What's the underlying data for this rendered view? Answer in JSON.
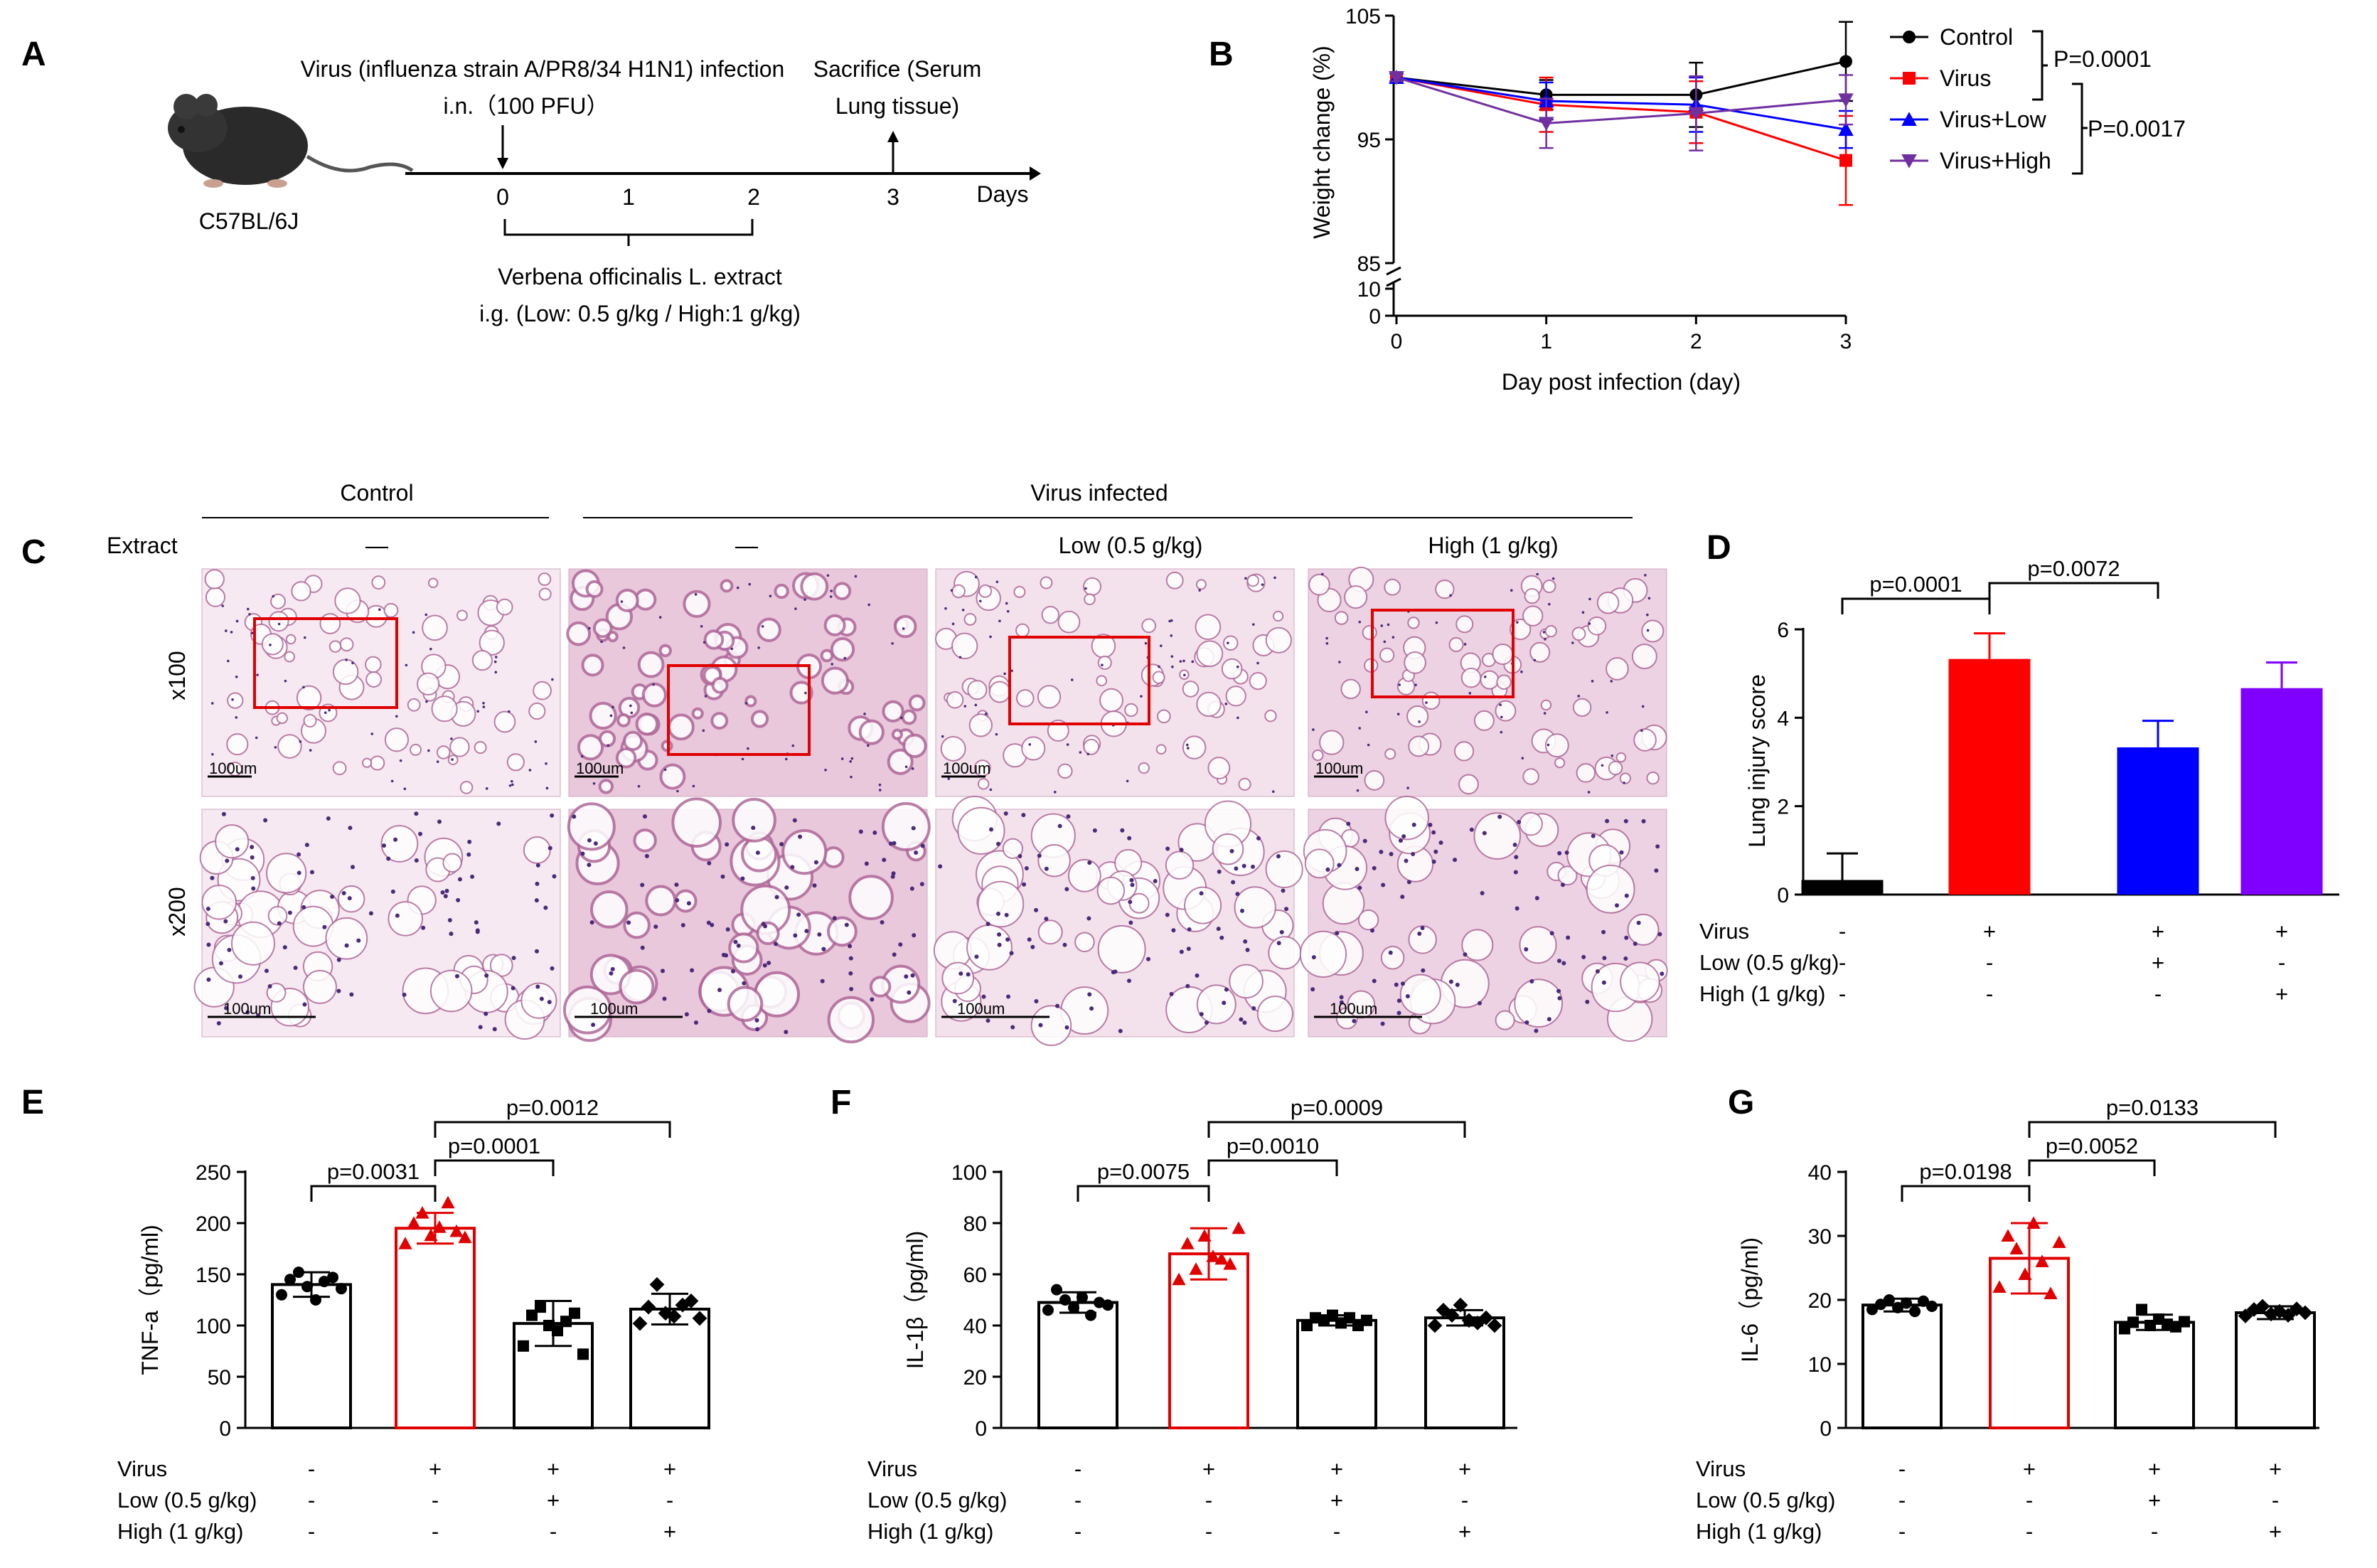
{
  "panels": {
    "A": {
      "label": "A",
      "mouse_label": "C57BL/6J",
      "infection_line1": "Virus (influenza strain A/PR8/34 H1N1) infection",
      "infection_line2": "i.n.（100 PFU）",
      "sacrifice_line1": "Sacrifice (Serum",
      "sacrifice_line2": "Lung tissue)",
      "ticks": [
        "0",
        "1",
        "2",
        "3"
      ],
      "days_label": "Days",
      "treatment_line1": "Verbena officinalis L. extract",
      "treatment_line2": "i.g. (Low: 0.5 g/kg / High:1 g/kg)"
    },
    "C": {
      "label": "C",
      "group_control": "Control",
      "group_virus": "Virus infected",
      "extract_label": "Extract",
      "columns": [
        "—",
        "—",
        "Low (0.5 g/kg)",
        "High (1 g/kg)"
      ],
      "row_labels": [
        "x100",
        "x200"
      ],
      "scalebar": "100um"
    }
  },
  "chart_data": [
    {
      "panel": "B",
      "type": "line",
      "title": "",
      "xlabel": "Day post infection (day)",
      "ylabel": "Weight change (%)",
      "x": [
        0,
        1,
        2,
        3
      ],
      "xticks": [
        "0",
        "1",
        "2",
        "3"
      ],
      "yticks_upper": [
        "85",
        "95",
        "105"
      ],
      "yticks_lower": [
        "0",
        "10"
      ],
      "ylim_upper": [
        85,
        105
      ],
      "ylim_lower": [
        0,
        10
      ],
      "series": [
        {
          "name": "Control",
          "color": "#000000",
          "marker": "circle",
          "values": [
            100,
            98.6,
            98.6,
            101.3
          ],
          "err": [
            0.3,
            1.2,
            2.6,
            3.2
          ]
        },
        {
          "name": "Virus",
          "color": "#ff0000",
          "marker": "square",
          "values": [
            100,
            97.8,
            97.2,
            93.3
          ],
          "err": [
            0.3,
            2.2,
            2.5,
            3.6
          ]
        },
        {
          "name": "Virus+Low",
          "color": "#0000ff",
          "marker": "triangle-up",
          "values": [
            100,
            98.1,
            97.8,
            95.8
          ],
          "err": [
            0.3,
            1.5,
            2.2,
            1.5
          ]
        },
        {
          "name": "Virus+High",
          "color": "#7030a0",
          "marker": "triangle-down",
          "values": [
            100,
            96.3,
            97.1,
            98.2
          ],
          "err": [
            0.3,
            2.0,
            3.0,
            2.0
          ]
        }
      ],
      "annotations": [
        "P=0.0001",
        "P=0.0017"
      ]
    },
    {
      "panel": "D",
      "type": "bar",
      "ylabel": "Lung injury score",
      "ylim": [
        0,
        6
      ],
      "yticks": [
        "0",
        "2",
        "4",
        "6"
      ],
      "categories": [
        "Control",
        "Virus",
        "Virus+Low",
        "Virus+High"
      ],
      "values": [
        0.33,
        5.33,
        3.33,
        4.67
      ],
      "err": [
        0.6,
        0.58,
        0.6,
        0.58
      ],
      "colors": [
        "#000000",
        "#ff0000",
        "#0000ff",
        "#8000ff"
      ],
      "annotations": [
        "p=0.0001",
        "p=0.0072"
      ],
      "condition_rows": [
        {
          "label": "Virus",
          "values": [
            "-",
            "+",
            "+",
            "+"
          ]
        },
        {
          "label": "Low (0.5 g/kg)",
          "values": [
            "-",
            "-",
            "+",
            "-"
          ]
        },
        {
          "label": "High (1 g/kg)",
          "values": [
            "-",
            "-",
            "-",
            "+"
          ]
        }
      ]
    },
    {
      "panel": "E",
      "type": "bar",
      "ylabel": "TNF-a（pg/ml)",
      "ylim": [
        0,
        250
      ],
      "yticks": [
        "0",
        "50",
        "100",
        "150",
        "200",
        "250"
      ],
      "categories": [
        "Control",
        "Virus",
        "Virus+Low",
        "Virus+High"
      ],
      "values": [
        140,
        195,
        102,
        116
      ],
      "err": [
        12,
        15,
        22,
        15
      ],
      "points": [
        [
          130,
          145,
          152,
          138,
          125,
          143,
          147,
          136
        ],
        [
          180,
          200,
          210,
          188,
          196,
          220,
          192,
          186
        ],
        [
          80,
          110,
          118,
          100,
          95,
          104,
          112,
          72
        ],
        [
          102,
          118,
          140,
          112,
          109,
          120,
          124,
          107
        ]
      ],
      "annotations": [
        "p=0.0031",
        "p=0.0001",
        "p=0.0012"
      ],
      "condition_rows": [
        {
          "label": "Virus",
          "values": [
            "-",
            "+",
            "+",
            "+"
          ]
        },
        {
          "label": "Low (0.5 g/kg)",
          "values": [
            "-",
            "-",
            "+",
            "-"
          ]
        },
        {
          "label": "High (1 g/kg)",
          "values": [
            "-",
            "-",
            "-",
            "+"
          ]
        }
      ]
    },
    {
      "panel": "F",
      "type": "bar",
      "ylabel": "IL-1β（pg/ml)",
      "ylim": [
        0,
        100
      ],
      "yticks": [
        "0",
        "20",
        "40",
        "60",
        "80",
        "100"
      ],
      "categories": [
        "Control",
        "Virus",
        "Virus+Low",
        "Virus+High"
      ],
      "values": [
        49,
        68,
        42,
        43
      ],
      "err": [
        4,
        10,
        2,
        3
      ],
      "points": [
        [
          46,
          54,
          50,
          47,
          51,
          44,
          49,
          48
        ],
        [
          58,
          72,
          62,
          75,
          67,
          66,
          64,
          78
        ],
        [
          40,
          43,
          42,
          44,
          41,
          43,
          40,
          42
        ],
        [
          40,
          46,
          44,
          48,
          42,
          41,
          43,
          40
        ]
      ],
      "annotations": [
        "p=0.0075",
        "p=0.0010",
        "p=0.0009"
      ],
      "condition_rows": [
        {
          "label": "Virus",
          "values": [
            "-",
            "+",
            "+",
            "+"
          ]
        },
        {
          "label": "Low (0.5 g/kg)",
          "values": [
            "-",
            "-",
            "+",
            "-"
          ]
        },
        {
          "label": "High (1 g/kg)",
          "values": [
            "-",
            "-",
            "-",
            "+"
          ]
        }
      ]
    },
    {
      "panel": "G",
      "type": "bar",
      "ylabel": "IL-6（pg/ml)",
      "ylim": [
        0,
        40
      ],
      "yticks": [
        "0",
        "10",
        "20",
        "30",
        "40"
      ],
      "categories": [
        "Control",
        "Virus",
        "Virus+Low",
        "Virus+High"
      ],
      "values": [
        19.2,
        26.5,
        16.5,
        18
      ],
      "err": [
        1.0,
        5.5,
        1.2,
        1.0
      ],
      "points": [
        [
          18.5,
          19.3,
          20,
          18.8,
          19.5,
          18.2,
          19.8,
          19
        ],
        [
          22,
          30,
          28,
          24,
          32,
          26,
          21,
          29
        ],
        [
          15.5,
          16.5,
          18.5,
          16,
          17,
          16.2,
          15.8,
          16.6
        ],
        [
          17.5,
          18.5,
          19,
          17.8,
          18.2,
          17.6,
          18.6,
          18
        ]
      ],
      "annotations": [
        "p=0.0198",
        "p=0.0052",
        "p=0.0133"
      ],
      "condition_rows": [
        {
          "label": "Virus",
          "values": [
            "-",
            "+",
            "+",
            "+"
          ]
        },
        {
          "label": "Low (0.5 g/kg)",
          "values": [
            "-",
            "-",
            "+",
            "-"
          ]
        },
        {
          "label": "High (1 g/kg)",
          "values": [
            "-",
            "-",
            "-",
            "+"
          ]
        }
      ]
    }
  ]
}
